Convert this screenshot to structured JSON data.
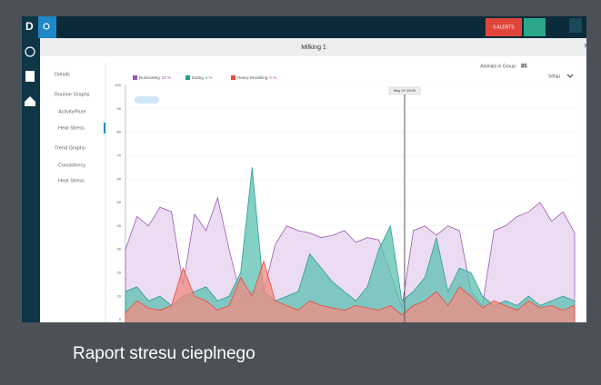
{
  "app": {
    "alerts": "5 ALERTS",
    "dialog_title": "Milking 1",
    "nav": [
      "Details",
      "Routine Graphs",
      "Activity/Rum",
      "Heat Stress",
      "Trend Graphs",
      "Consistency",
      "Heat Stress"
    ],
    "animals_label": "Animals in Group:",
    "animals_count": 85,
    "setup": "Setup",
    "time_tag": "May 22 18:00"
  },
  "caption": "Raport stresu cieplnego",
  "chart_data": {
    "type": "area",
    "categories": [
      null,
      null,
      null,
      null,
      null,
      null,
      null,
      null,
      null,
      null,
      null,
      null,
      null,
      null,
      null,
      null,
      null,
      null,
      null,
      null,
      null,
      null,
      null,
      null,
      null,
      null,
      null,
      null,
      null,
      null,
      null,
      null,
      null,
      null,
      null,
      null,
      null,
      null,
      null,
      null
    ],
    "series": [
      {
        "name": "Ruminating",
        "share_label": "33 %",
        "color": "#9b59b6",
        "fill": "#ead8f0",
        "values": [
          30,
          44,
          40,
          48,
          46,
          15,
          45,
          38,
          52,
          30,
          10,
          12,
          12,
          32,
          40,
          38,
          37,
          35,
          36,
          38,
          33,
          35,
          34,
          20,
          5,
          38,
          40,
          36,
          40,
          38,
          12,
          6,
          38,
          40,
          44,
          46,
          50,
          42,
          46,
          37
        ]
      },
      {
        "name": "Eating",
        "share_label": "4 %",
        "color": "#2a9d8f",
        "fill": "#5cc0b1",
        "values": [
          12,
          14,
          8,
          10,
          6,
          10,
          12,
          14,
          8,
          10,
          20,
          65,
          12,
          8,
          10,
          12,
          28,
          22,
          16,
          12,
          8,
          14,
          30,
          40,
          8,
          12,
          18,
          35,
          12,
          22,
          20,
          10,
          6,
          8,
          6,
          10,
          6,
          8,
          10,
          8
        ]
      },
      {
        "name": "Heavy Breathing",
        "share_label": "0 %",
        "color": "#e74c3c",
        "fill": "#f28b82",
        "values": [
          3,
          8,
          5,
          4,
          6,
          22,
          10,
          8,
          4,
          6,
          18,
          10,
          25,
          8,
          6,
          4,
          8,
          6,
          5,
          4,
          6,
          5,
          4,
          6,
          2,
          6,
          8,
          12,
          6,
          14,
          10,
          5,
          8,
          6,
          4,
          8,
          5,
          6,
          4,
          6
        ]
      }
    ],
    "ylim": [
      0,
      100
    ],
    "yticks": [
      0,
      10,
      20,
      30,
      40,
      50,
      60,
      70,
      80,
      90,
      100
    ]
  }
}
